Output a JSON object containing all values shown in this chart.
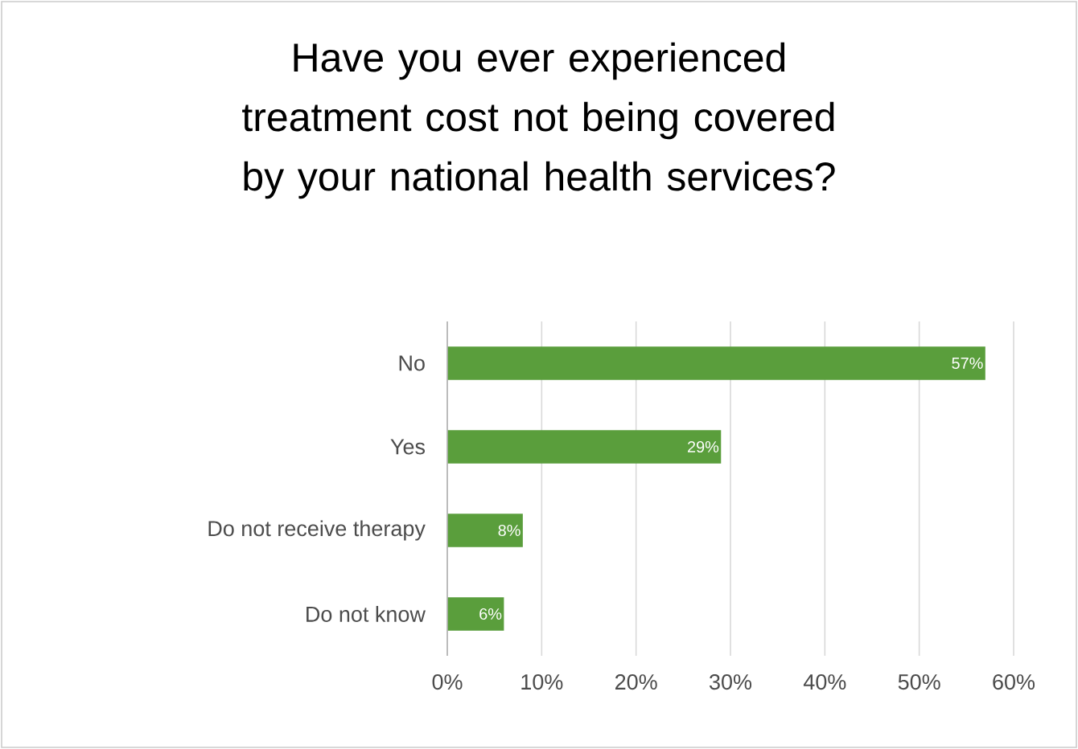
{
  "chart_data": {
    "type": "bar",
    "orientation": "horizontal",
    "title": "Have you ever experienced treatment cost not being covered by your national health services?",
    "categories": [
      "No",
      "Yes",
      "Do not receive therapy",
      "Do not know"
    ],
    "values": [
      57,
      29,
      8,
      6
    ],
    "value_labels": [
      "57%",
      "29%",
      "8%",
      "6%"
    ],
    "color": "#5a9e3c",
    "xlim": [
      0,
      60
    ],
    "xticks": [
      {
        "value": 0,
        "label": "0%"
      },
      {
        "value": 10,
        "label": "10%"
      },
      {
        "value": 20,
        "label": "20%"
      },
      {
        "value": 30,
        "label": "30%"
      },
      {
        "value": 40,
        "label": "40%"
      },
      {
        "value": 50,
        "label": "50%"
      },
      {
        "value": 60,
        "label": "60%"
      }
    ],
    "grid": "x"
  }
}
